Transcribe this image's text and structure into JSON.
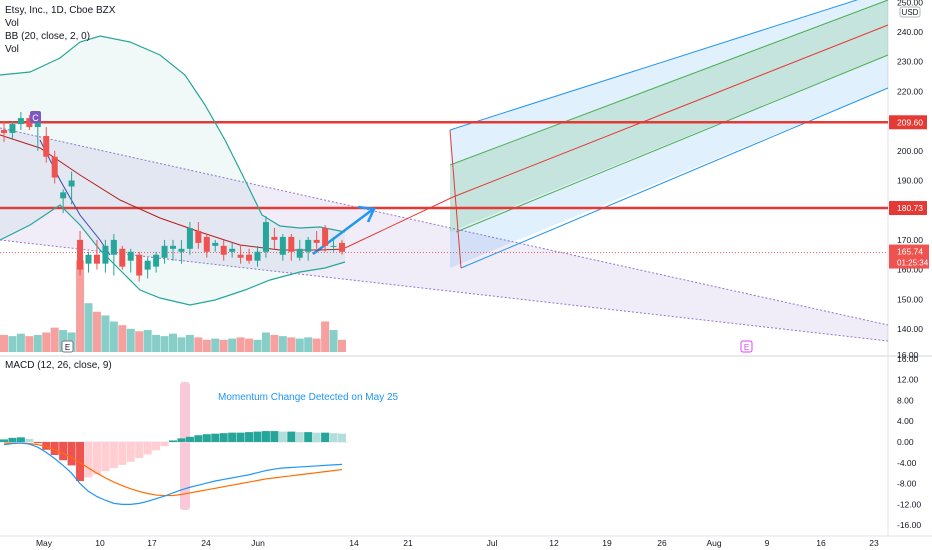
{
  "header": {
    "symbol": "Etsy, Inc., 1D, Cboe BZX",
    "vol_label": "Vol",
    "bb_label": "BB (20, close, 2, 0)",
    "vol_label2": "Vol"
  },
  "macd_label": "MACD (12, 26, close, 9)",
  "annotation": "Momentum Change Detected on May 25",
  "colors": {
    "up": "#26a69a",
    "down": "#ef5350",
    "bb_band": "#26a69a",
    "bb_basis": "#b71c1c",
    "resistance": "#e53935",
    "macd_line": "#2196f3",
    "signal_line": "#ff6d00",
    "fork_outer": "#2196f3",
    "fork_inner": "#4caf50",
    "fork_median": "#e53935",
    "wedge": "#9575cd"
  },
  "chart_data": {
    "type": "candlestick",
    "price_axis": {
      "ylim": [
        130,
        250
      ],
      "ticks": [
        "140.00",
        "150.00",
        "160.00",
        "170.00",
        "180.00",
        "190.00",
        "200.00",
        "210.00",
        "220.00",
        "230.00",
        "240.00",
        "250.00"
      ],
      "top_label": "USD"
    },
    "macd_axis": {
      "ylim": [
        -17,
        16
      ],
      "ticks": [
        "16.00",
        "12.00",
        "8.00",
        "4.00",
        "0.00",
        "-4.00",
        "-8.00",
        "-12.00",
        "-16.00"
      ]
    },
    "x_ticks": [
      "May",
      "10",
      "17",
      "24",
      "Jun",
      "14",
      "21",
      "Jul",
      "12",
      "19",
      "26",
      "Aug",
      "9",
      "16",
      "23"
    ],
    "price_labels": {
      "resistance_1": "209.60",
      "resistance_2": "180.73",
      "last_price": "165.74",
      "countdown": "01:25:34"
    },
    "markers": {
      "event_c": "C",
      "earnings": "E"
    },
    "candles": [
      {
        "o": 207,
        "h": 210,
        "l": 203,
        "c": 206
      },
      {
        "o": 206,
        "h": 210,
        "l": 204,
        "c": 209
      },
      {
        "o": 209,
        "h": 213,
        "l": 207,
        "c": 211
      },
      {
        "o": 211,
        "h": 212,
        "l": 207,
        "c": 208
      },
      {
        "o": 208,
        "h": 212,
        "l": 200,
        "c": 210
      },
      {
        "o": 205,
        "h": 208,
        "l": 196,
        "c": 198
      },
      {
        "o": 198,
        "h": 200,
        "l": 189,
        "c": 191
      },
      {
        "o": 184,
        "h": 187,
        "l": 179,
        "c": 186
      },
      {
        "o": 188,
        "h": 193,
        "l": 182,
        "c": 190
      },
      {
        "o": 170,
        "h": 173,
        "l": 158,
        "c": 160
      },
      {
        "o": 162,
        "h": 166,
        "l": 159,
        "c": 165
      },
      {
        "o": 165,
        "h": 170,
        "l": 160,
        "c": 162
      },
      {
        "o": 162,
        "h": 170,
        "l": 159,
        "c": 168
      },
      {
        "o": 165,
        "h": 172,
        "l": 158,
        "c": 170
      },
      {
        "o": 167,
        "h": 168,
        "l": 160,
        "c": 161
      },
      {
        "o": 163,
        "h": 167,
        "l": 159,
        "c": 166
      },
      {
        "o": 165,
        "h": 166,
        "l": 156,
        "c": 158
      },
      {
        "o": 160,
        "h": 164,
        "l": 157,
        "c": 163
      },
      {
        "o": 161,
        "h": 166,
        "l": 159,
        "c": 165
      },
      {
        "o": 164,
        "h": 170,
        "l": 162,
        "c": 168
      },
      {
        "o": 167,
        "h": 170,
        "l": 163,
        "c": 168
      },
      {
        "o": 166,
        "h": 170,
        "l": 162,
        "c": 167
      },
      {
        "o": 167,
        "h": 176,
        "l": 165,
        "c": 174
      },
      {
        "o": 173,
        "h": 176,
        "l": 167,
        "c": 169
      },
      {
        "o": 171,
        "h": 172,
        "l": 164,
        "c": 166
      },
      {
        "o": 168,
        "h": 170,
        "l": 166,
        "c": 169
      },
      {
        "o": 168,
        "h": 170,
        "l": 163,
        "c": 165
      },
      {
        "o": 166,
        "h": 169,
        "l": 164,
        "c": 167
      },
      {
        "o": 165,
        "h": 168,
        "l": 162,
        "c": 164
      },
      {
        "o": 165,
        "h": 167,
        "l": 162,
        "c": 163
      },
      {
        "o": 163,
        "h": 168,
        "l": 161,
        "c": 166
      },
      {
        "o": 166,
        "h": 178,
        "l": 164,
        "c": 176
      },
      {
        "o": 171,
        "h": 174,
        "l": 167,
        "c": 170
      },
      {
        "o": 165,
        "h": 172,
        "l": 163,
        "c": 171
      },
      {
        "o": 171,
        "h": 172,
        "l": 163,
        "c": 166
      },
      {
        "o": 164,
        "h": 170,
        "l": 163,
        "c": 167
      },
      {
        "o": 166,
        "h": 171,
        "l": 163,
        "c": 170
      },
      {
        "o": 170,
        "h": 173,
        "l": 167,
        "c": 169
      },
      {
        "o": 174,
        "h": 175,
        "l": 166,
        "c": 168
      },
      {
        "o": 168,
        "h": 171,
        "l": 166,
        "c": 168
      },
      {
        "o": 169,
        "h": 170,
        "l": 165,
        "c": 166
      }
    ],
    "volume": [
      14,
      13,
      15,
      13,
      14,
      16,
      20,
      18,
      16,
      75,
      40,
      33,
      30,
      25,
      22,
      19,
      17,
      18,
      14,
      13,
      15,
      12,
      14,
      12,
      10,
      11,
      10,
      11,
      12,
      11,
      10,
      16,
      14,
      13,
      12,
      11,
      12,
      11,
      25,
      18,
      10
    ],
    "macd_hist": [
      0.5,
      0.8,
      0.9,
      0.6,
      -0.2,
      -1.5,
      -2.5,
      -3.5,
      -4.5,
      -7.5,
      -6.8,
      -6.2,
      -5.6,
      -5.0,
      -4.4,
      -3.8,
      -3.1,
      -2.4,
      -1.6,
      -0.8,
      0.3,
      0.7,
      1.0,
      1.3,
      1.5,
      1.6,
      1.7,
      1.8,
      1.8,
      1.9,
      2.0,
      2.1,
      2.1,
      2.0,
      2.0,
      1.9,
      1.9,
      1.8,
      1.8,
      1.7,
      1.6
    ],
    "macd_line": [
      -0.5,
      -0.3,
      -0.2,
      -0.4,
      -1,
      -2,
      -3.2,
      -4.5,
      -6,
      -8,
      -9.5,
      -10.5,
      -11.2,
      -11.8,
      -12,
      -12,
      -11.8,
      -11.4,
      -10.9,
      -10.4,
      -9.8,
      -9.2,
      -8.7,
      -8.3,
      -7.9,
      -7.5,
      -7.2,
      -6.9,
      -6.6,
      -6.3,
      -5.9,
      -5.5,
      -5.2,
      -5.0,
      -4.9,
      -4.8,
      -4.7,
      -4.6,
      -4.5,
      -4.4,
      -4.3
    ],
    "signal_line": [
      -0.2,
      -0.2,
      -0.2,
      -0.3,
      -0.5,
      -0.9,
      -1.5,
      -2.2,
      -3.0,
      -4.0,
      -5.0,
      -6.0,
      -6.9,
      -7.7,
      -8.4,
      -9.0,
      -9.5,
      -9.9,
      -10.2,
      -10.3,
      -10.3,
      -10.1,
      -9.8,
      -9.5,
      -9.2,
      -8.9,
      -8.6,
      -8.3,
      -8.0,
      -7.7,
      -7.4,
      -7.1,
      -6.9,
      -6.7,
      -6.5,
      -6.3,
      -6.1,
      -5.9,
      -5.7,
      -5.5,
      -5.3
    ]
  }
}
